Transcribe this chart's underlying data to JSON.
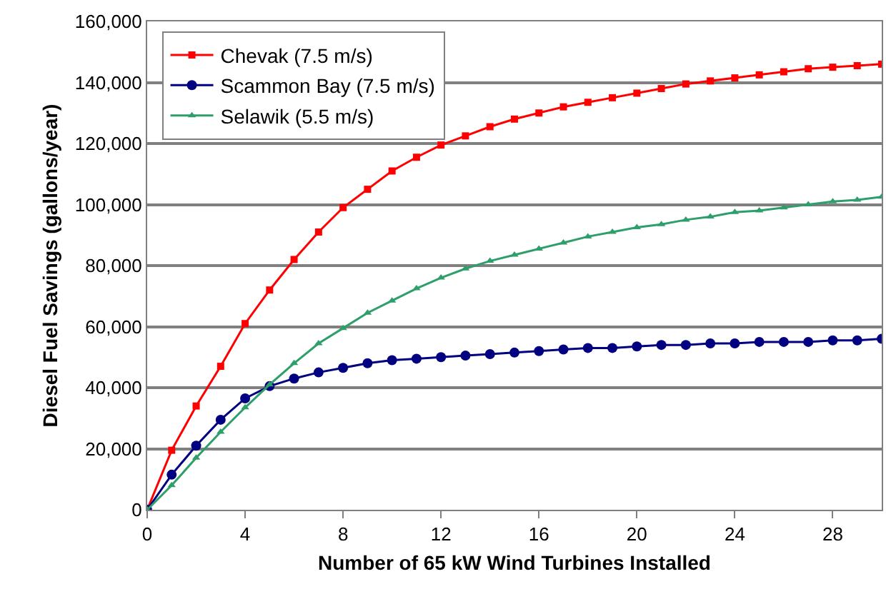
{
  "chart_data": {
    "type": "line",
    "xlabel": "Number of 65 kW Wind Turbines Installed",
    "ylabel": "Diesel Fuel Savings (gallons/year)",
    "x": [
      0,
      1,
      2,
      3,
      4,
      5,
      6,
      7,
      8,
      9,
      10,
      11,
      12,
      13,
      14,
      15,
      16,
      17,
      18,
      19,
      20,
      21,
      22,
      23,
      24,
      25,
      26,
      27,
      28,
      29,
      30
    ],
    "series": [
      {
        "name": "Chevak (7.5 m/s)",
        "color": "#ff0000",
        "marker": "square",
        "values": [
          0,
          19500,
          34000,
          47000,
          61000,
          72000,
          82000,
          91000,
          99000,
          105000,
          111000,
          115500,
          119500,
          122500,
          125500,
          128000,
          130000,
          132000,
          133500,
          135000,
          136500,
          138000,
          139500,
          140500,
          141500,
          142500,
          143500,
          144500,
          145000,
          145500,
          146000
        ]
      },
      {
        "name": "Scammon Bay (7.5 m/s)",
        "color": "#000080",
        "marker": "circle",
        "values": [
          0,
          11500,
          21000,
          29500,
          36500,
          40500,
          43000,
          45000,
          46500,
          48000,
          49000,
          49500,
          50000,
          50500,
          51000,
          51500,
          52000,
          52500,
          53000,
          53000,
          53500,
          54000,
          54000,
          54500,
          54500,
          55000,
          55000,
          55000,
          55500,
          55500,
          56000
        ]
      },
      {
        "name": "Selawik (5.5 m/s)",
        "color": "#2e9e6a",
        "marker": "triangle",
        "values": [
          0,
          8000,
          17000,
          25500,
          33500,
          41000,
          48000,
          54500,
          59500,
          64500,
          68500,
          72500,
          76000,
          79000,
          81500,
          83500,
          85500,
          87500,
          89500,
          91000,
          92500,
          93500,
          95000,
          96000,
          97500,
          98000,
          99000,
          100000,
          101000,
          101500,
          102500
        ]
      }
    ],
    "xlim": [
      0,
      30
    ],
    "xticks": [
      0,
      4,
      8,
      12,
      16,
      20,
      24,
      28
    ],
    "ylim": [
      0,
      160000
    ],
    "yticks": [
      {
        "value": 0,
        "label": "0"
      },
      {
        "value": 20000,
        "label": "20,000"
      },
      {
        "value": 40000,
        "label": "40,000"
      },
      {
        "value": 60000,
        "label": "60,000"
      },
      {
        "value": 80000,
        "label": "80,000"
      },
      {
        "value": 100000,
        "label": "100,000"
      },
      {
        "value": 120000,
        "label": "120,000"
      },
      {
        "value": 140000,
        "label": "140,000"
      },
      {
        "value": 160000,
        "label": "160,000"
      }
    ],
    "grid": "y",
    "legend": "top left",
    "line_style": "solid"
  }
}
